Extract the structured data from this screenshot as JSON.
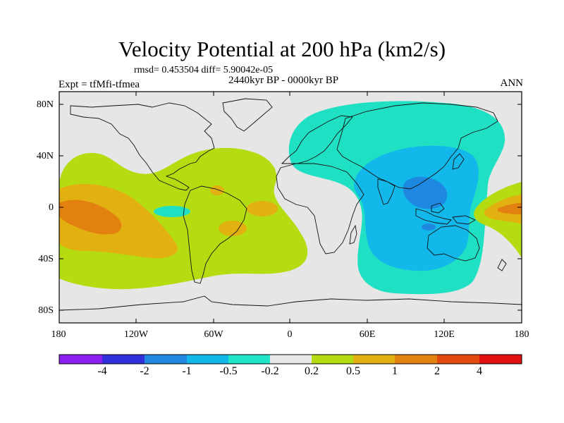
{
  "title": "Velocity Potential at 200 hPa (km2/s)",
  "stats": "rmsd= 0.453504 diff= 5.90042e-05",
  "left_label": "Expt = tfMfi-tfmea",
  "center_label": "2440kyr BP - 0000kyr BP",
  "right_label": "ANN",
  "lat_labels": [
    "80N",
    "40N",
    "0",
    "40S",
    "80S"
  ],
  "lon_labels": [
    "180",
    "120W",
    "60W",
    "0",
    "60E",
    "120E",
    "180"
  ],
  "colorbar": {
    "labels": [
      "-4",
      "-2",
      "-1",
      "-0.5",
      "-0.2",
      "0.2",
      "0.5",
      "1",
      "2",
      "4"
    ],
    "colors": [
      "#8b1ff0",
      "#3030dc",
      "#1e88e0",
      "#12b8ea",
      "#20e4c8",
      "#e8e8e8",
      "#b4dc10",
      "#e2b010",
      "#e28010",
      "#e24a10",
      "#e01010"
    ]
  },
  "map_colors": {
    "background": "#e6e6e6",
    "lime": "#b4dc10",
    "gold": "#e2b010",
    "orange": "#e28010",
    "teal": "#20e0c4",
    "cyan": "#12b8ea",
    "blue": "#1e88e0"
  }
}
